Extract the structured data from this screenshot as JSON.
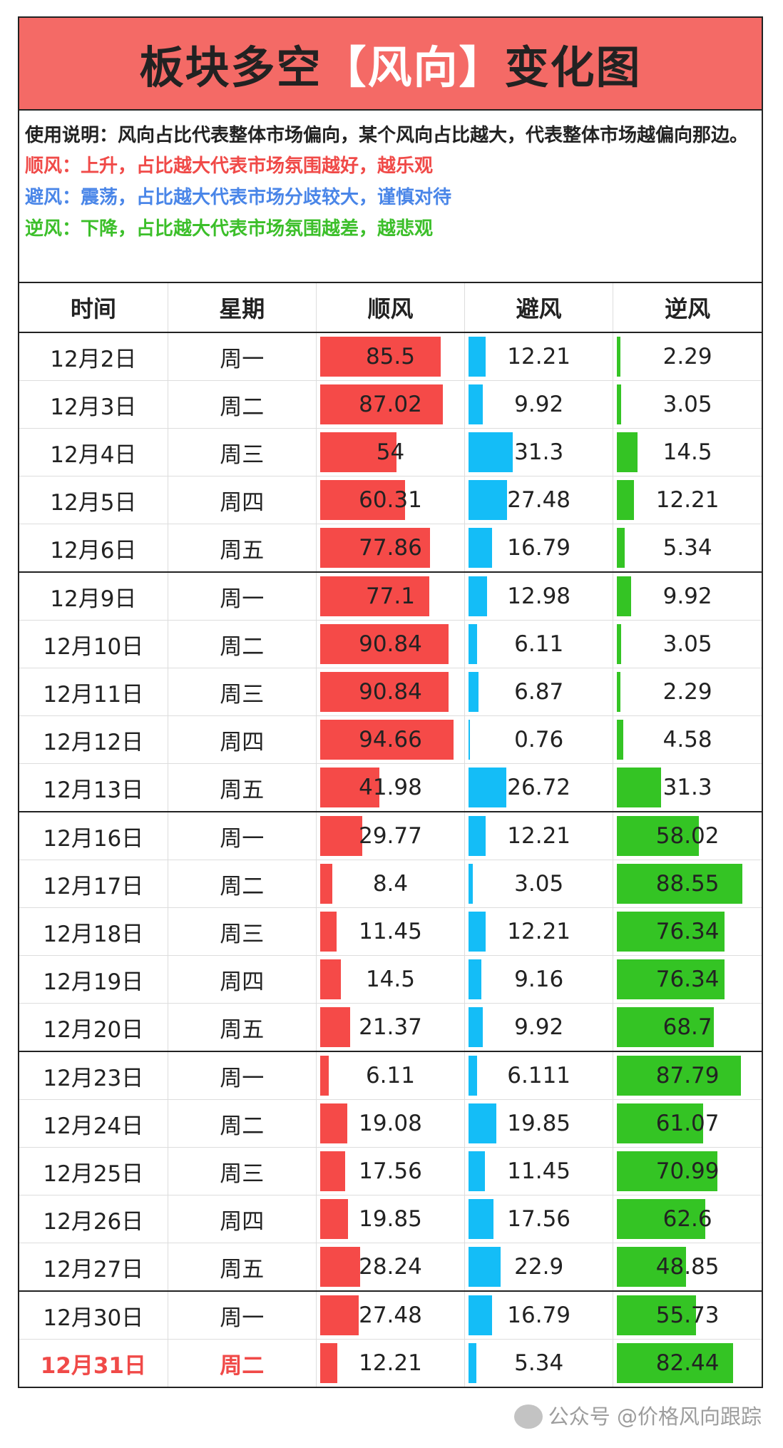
{
  "title": {
    "prefix": "板块多空",
    "highlight": "【风向】",
    "suffix": "变化图"
  },
  "description": {
    "usage": "使用说明：风向占比代表整体市场偏向，某个风向占比越大，代表整体市场越偏向那边。",
    "tailwind": "顺风：上升，占比越大代表市场氛围越好，越乐观",
    "sidewind": "避风：震荡，占比越大代表市场分歧较大，谨慎对待",
    "headwind": "逆风：下降，占比越大代表市场氛围越差，越悲观"
  },
  "colors": {
    "tailwind": "#f54a48",
    "sidewind": "#14bdf7",
    "headwind": "#34c424",
    "title_bg": "#f46a66",
    "desc_tailwind": "#f04a48",
    "desc_sidewind": "#4a86e8",
    "desc_headwind": "#3cbf2a"
  },
  "headers": [
    "时间",
    "星期",
    "顺风",
    "避风",
    "逆风"
  ],
  "rows": [
    {
      "date": "12月2日",
      "weekday": "周一",
      "up": "85.5",
      "side": "12.21",
      "down": "2.29",
      "week_start": true
    },
    {
      "date": "12月3日",
      "weekday": "周二",
      "up": "87.02",
      "side": "9.92",
      "down": "3.05"
    },
    {
      "date": "12月4日",
      "weekday": "周三",
      "up": "54",
      "side": "31.3",
      "down": "14.5"
    },
    {
      "date": "12月5日",
      "weekday": "周四",
      "up": "60.31",
      "side": "27.48",
      "down": "12.21"
    },
    {
      "date": "12月6日",
      "weekday": "周五",
      "up": "77.86",
      "side": "16.79",
      "down": "5.34"
    },
    {
      "date": "12月9日",
      "weekday": "周一",
      "up": "77.1",
      "side": "12.98",
      "down": "9.92",
      "week_start": true
    },
    {
      "date": "12月10日",
      "weekday": "周二",
      "up": "90.84",
      "side": "6.11",
      "down": "3.05"
    },
    {
      "date": "12月11日",
      "weekday": "周三",
      "up": "90.84",
      "side": "6.87",
      "down": "2.29"
    },
    {
      "date": "12月12日",
      "weekday": "周四",
      "up": "94.66",
      "side": "0.76",
      "down": "4.58"
    },
    {
      "date": "12月13日",
      "weekday": "周五",
      "up": "41.98",
      "side": "26.72",
      "down": "31.3"
    },
    {
      "date": "12月16日",
      "weekday": "周一",
      "up": "29.77",
      "side": "12.21",
      "down": "58.02",
      "week_start": true
    },
    {
      "date": "12月17日",
      "weekday": "周二",
      "up": "8.4",
      "side": "3.05",
      "down": "88.55"
    },
    {
      "date": "12月18日",
      "weekday": "周三",
      "up": "11.45",
      "side": "12.21",
      "down": "76.34"
    },
    {
      "date": "12月19日",
      "weekday": "周四",
      "up": "14.5",
      "side": "9.16",
      "down": "76.34"
    },
    {
      "date": "12月20日",
      "weekday": "周五",
      "up": "21.37",
      "side": "9.92",
      "down": "68.7"
    },
    {
      "date": "12月23日",
      "weekday": "周一",
      "up": "6.11",
      "side": "6.111",
      "down": "87.79",
      "week_start": true
    },
    {
      "date": "12月24日",
      "weekday": "周二",
      "up": "19.08",
      "side": "19.85",
      "down": "61.07"
    },
    {
      "date": "12月25日",
      "weekday": "周三",
      "up": "17.56",
      "side": "11.45",
      "down": "70.99"
    },
    {
      "date": "12月26日",
      "weekday": "周四",
      "up": "19.85",
      "side": "17.56",
      "down": "62.6"
    },
    {
      "date": "12月27日",
      "weekday": "周五",
      "up": "28.24",
      "side": "22.9",
      "down": "48.85"
    },
    {
      "date": "12月30日",
      "weekday": "周一",
      "up": "27.48",
      "side": "16.79",
      "down": "55.73",
      "week_start": true
    },
    {
      "date": "12月31日",
      "weekday": "周二",
      "up": "12.21",
      "side": "5.34",
      "down": "82.44",
      "today": true
    }
  ],
  "watermark": {
    "text": "公众号 @价格风向跟踪",
    "icon": "wechat-icon"
  }
}
